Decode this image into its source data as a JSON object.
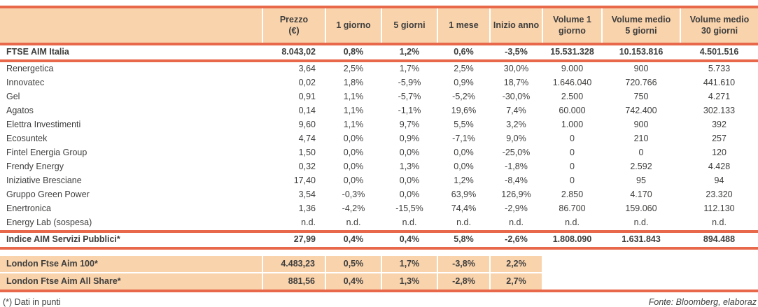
{
  "colors": {
    "header_background": "#F9D3AC",
    "rule_line": "#E8684B",
    "text": "#3E3E3D"
  },
  "table": {
    "headers": [
      "",
      "Prezzo\n(€)",
      "1 giorno",
      "5 giorni",
      "1 mese",
      "Inizio anno",
      "Volume 1\ngiorno",
      "Volume medio\n5 giorni",
      "Volume medio\n30 giorni"
    ],
    "rows": [
      {
        "name": "FTSE AIM Italia",
        "type": "index",
        "values": [
          "8.043,02",
          "0,8%",
          "1,2%",
          "0,6%",
          "-3,5%",
          "15.531.328",
          "10.153.816",
          "4.501.516"
        ]
      },
      {
        "name": "Renergetica",
        "type": "normal",
        "values": [
          "3,64",
          "2,5%",
          "1,7%",
          "2,5%",
          "30,0%",
          "9.000",
          "900",
          "5.733"
        ]
      },
      {
        "name": "Innovatec",
        "type": "normal",
        "values": [
          "0,02",
          "1,8%",
          "-5,9%",
          "0,9%",
          "18,7%",
          "1.646.040",
          "720.766",
          "441.610"
        ]
      },
      {
        "name": "Gel",
        "type": "normal",
        "values": [
          "0,91",
          "1,1%",
          "-5,7%",
          "-5,2%",
          "-30,0%",
          "2.500",
          "750",
          "4.271"
        ]
      },
      {
        "name": "Agatos",
        "type": "normal",
        "values": [
          "0,14",
          "1,1%",
          "-1,1%",
          "19,6%",
          "7,4%",
          "60.000",
          "742.400",
          "302.133"
        ]
      },
      {
        "name": "Elettra Investimenti",
        "type": "normal",
        "values": [
          "9,60",
          "1,1%",
          "9,7%",
          "5,5%",
          "3,2%",
          "1.000",
          "900",
          "392"
        ]
      },
      {
        "name": "Ecosuntek",
        "type": "normal",
        "values": [
          "4,74",
          "0,0%",
          "0,9%",
          "-7,1%",
          "9,0%",
          "0",
          "210",
          "257"
        ]
      },
      {
        "name": "Fintel Energia Group",
        "type": "normal",
        "values": [
          "1,50",
          "0,0%",
          "0,0%",
          "0,0%",
          "-25,0%",
          "0",
          "0",
          "120"
        ]
      },
      {
        "name": "Frendy Energy",
        "type": "normal",
        "values": [
          "0,32",
          "0,0%",
          "1,3%",
          "0,0%",
          "-1,8%",
          "0",
          "2.592",
          "4.428"
        ]
      },
      {
        "name": "Iniziative Bresciane",
        "type": "normal",
        "values": [
          "17,40",
          "0,0%",
          "0,0%",
          "1,2%",
          "-8,4%",
          "0",
          "95",
          "94"
        ]
      },
      {
        "name": "Gruppo Green Power",
        "type": "normal",
        "values": [
          "3,54",
          "-0,3%",
          "0,0%",
          "63,9%",
          "126,9%",
          "2.850",
          "4.170",
          "23.320"
        ]
      },
      {
        "name": "Enertronica",
        "type": "normal",
        "values": [
          "1,36",
          "-4,2%",
          "-15,5%",
          "74,4%",
          "-2,9%",
          "86.700",
          "159.060",
          "112.130"
        ]
      },
      {
        "name": "Energy Lab (sospesa)",
        "type": "normal",
        "values": [
          "n.d.",
          "n.d.",
          "n.d.",
          "n.d.",
          "n.d.",
          "n.d.",
          "n.d.",
          "n.d."
        ]
      },
      {
        "name": "Indice AIM Servizi Pubblici*",
        "type": "index",
        "values": [
          "27,99",
          "0,4%",
          "0,4%",
          "5,8%",
          "-2,6%",
          "1.808.090",
          "1.631.843",
          "894.488"
        ]
      },
      {
        "name": "",
        "type": "spacer",
        "values": [
          "",
          "",
          "",
          "",
          "",
          "",
          "",
          ""
        ]
      },
      {
        "name": "London Ftse Aim 100*",
        "type": "london",
        "values": [
          "4.483,23",
          "0,5%",
          "1,7%",
          "-3,8%",
          "2,2%",
          "",
          "",
          ""
        ]
      },
      {
        "name": "London Ftse Aim All Share*",
        "type": "london",
        "values": [
          "881,56",
          "0,4%",
          "1,3%",
          "-2,8%",
          "2,7%",
          "",
          "",
          ""
        ]
      }
    ]
  },
  "footer": {
    "left": "(*) Dati in punti",
    "right": "Fonte: Bloomberg, elaboraz"
  }
}
